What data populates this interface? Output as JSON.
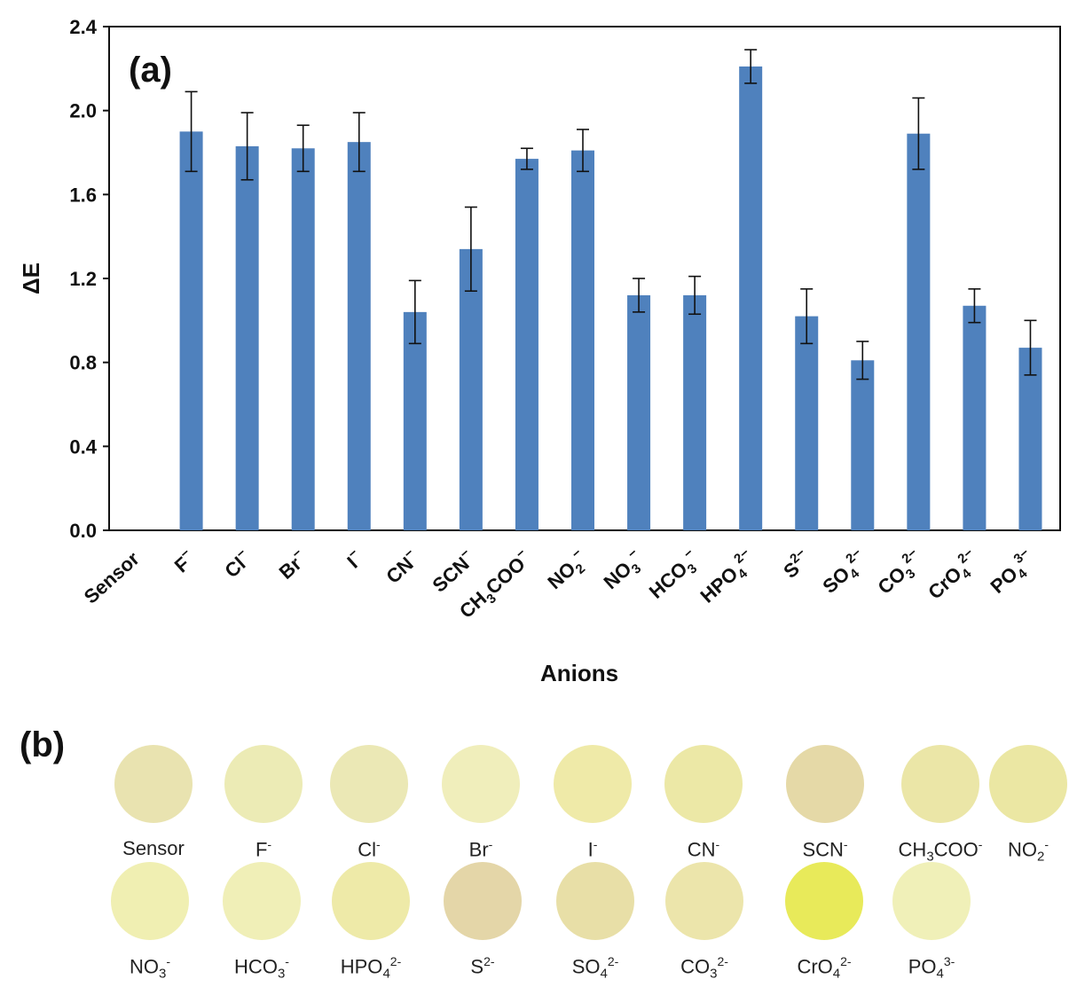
{
  "chart_data": {
    "type": "bar",
    "panel_label": "(a)",
    "xlabel": "Anions",
    "ylabel": "ΔE",
    "ylim": [
      0,
      2.4
    ],
    "yticks": [
      "0.0",
      "0.4",
      "0.8",
      "1.2",
      "1.6",
      "2.0",
      "2.4"
    ],
    "categories": [
      {
        "label": "Sensor"
      },
      {
        "label": "F",
        "sup": "−"
      },
      {
        "label": "Cl",
        "sup": "−"
      },
      {
        "label": "Br",
        "sup": "−"
      },
      {
        "label": "I",
        "sup": "−"
      },
      {
        "label": "CN",
        "sup": "−"
      },
      {
        "label": "SCN",
        "sup": "−"
      },
      {
        "label": "CH",
        "sub": "3",
        "tail": "COO",
        "sup": "−"
      },
      {
        "label": "NO",
        "sub": "2",
        "sup": "−"
      },
      {
        "label": "NO",
        "sub": "3",
        "sup": "−"
      },
      {
        "label": "HCO",
        "sub": "3",
        "sup": "−"
      },
      {
        "label": "HPO",
        "sub": "4",
        "sup": "2−"
      },
      {
        "label": "S",
        "sup": "2−"
      },
      {
        "label": "SO",
        "sub": "4",
        "sup": "2−"
      },
      {
        "label": "CO",
        "sub": "3",
        "sup": "2−"
      },
      {
        "label": "CrO",
        "sub": "4",
        "sup": "2−"
      },
      {
        "label": "PO",
        "sub": "4",
        "sup": "3−"
      }
    ],
    "values": [
      0,
      1.9,
      1.83,
      1.82,
      1.85,
      1.04,
      1.34,
      1.77,
      1.81,
      1.12,
      1.12,
      2.21,
      1.02,
      0.81,
      1.89,
      1.07,
      0.87
    ],
    "errors": [
      0,
      0.19,
      0.16,
      0.11,
      0.14,
      0.15,
      0.2,
      0.05,
      0.1,
      0.08,
      0.09,
      0.08,
      0.13,
      0.09,
      0.17,
      0.08,
      0.13
    ],
    "bar_color": "#4f81bd",
    "grid": false
  },
  "panel_b": {
    "label": "(b)",
    "rows": [
      [
        {
          "name": "Sensor",
          "color": "#e9e3b0"
        },
        {
          "name": "F",
          "sup": "-",
          "color": "#ecebb5"
        },
        {
          "name": "Cl",
          "sup": "-",
          "color": "#ebe8b5"
        },
        {
          "name": "Br",
          "sup": "-",
          "color": "#f0eebb"
        },
        {
          "name": "I",
          "sup": "-",
          "color": "#efeaa8"
        },
        {
          "name": "CN",
          "sup": "-",
          "color": "#ece8a6"
        },
        {
          "name": "SCN",
          "sup": "-",
          "color": "#e5d9a7"
        },
        {
          "name": "CH",
          "sub": "3",
          "tail": "COO",
          "sup": "-",
          "color": "#ebe6a7"
        },
        {
          "name": "NO",
          "sub": "2",
          "sup": "-",
          "color": "#ebe7a3"
        }
      ],
      [
        {
          "name": "NO",
          "sub": "3",
          "sup": "-",
          "color": "#f0efb2"
        },
        {
          "name": "HCO",
          "sub": "3",
          "sup": "-",
          "color": "#f0efb7"
        },
        {
          "name": "HPO",
          "sub": "4",
          "sup": "2-",
          "color": "#eeeaa8"
        },
        {
          "name": "S",
          "sup": "2-",
          "color": "#e4d6a8"
        },
        {
          "name": "SO",
          "sub": "4",
          "sup": "2-",
          "color": "#e8dfa7"
        },
        {
          "name": "CO",
          "sub": "3",
          "sup": "2-",
          "color": "#ece5ab"
        },
        {
          "name": "CrO",
          "sub": "4",
          "sup": "2-",
          "color": "#e8ea5a"
        },
        {
          "name": "PO",
          "sub": "4",
          "sup": "3-",
          "color": "#f0f0b8"
        }
      ]
    ]
  }
}
